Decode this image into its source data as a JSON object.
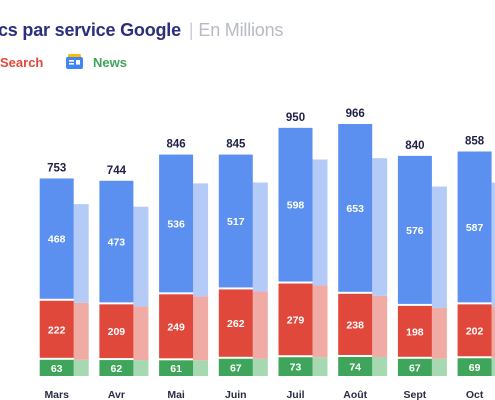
{
  "header": {
    "title": "cs par service Google",
    "subtitle": "En Millions"
  },
  "legend": {
    "items": [
      {
        "label": "Search",
        "color": "#e0483b",
        "icon": "search-icon"
      },
      {
        "label": "News",
        "color": "#3fa55a",
        "icon": "google-news-icon"
      }
    ]
  },
  "chart_data": {
    "type": "bar",
    "stacked": true,
    "categories": [
      "",
      "Mars",
      "Avr",
      "Mai",
      "Juin",
      "Juil",
      "Août",
      "Sept",
      "Oct"
    ],
    "series": [
      {
        "color": "#5b8ff0",
        "values": [
          null,
          468,
          473,
          536,
          517,
          598,
          653,
          576,
          587
        ]
      },
      {
        "name": "Search",
        "color": "#e0483b",
        "values": [
          null,
          222,
          209,
          249,
          262,
          279,
          238,
          198,
          202
        ]
      },
      {
        "name": "News",
        "color": "#3fa55a",
        "values": [
          null,
          63,
          62,
          61,
          67,
          73,
          74,
          67,
          69
        ]
      }
    ],
    "totals": [
      null,
      753,
      744,
      846,
      845,
      950,
      966,
      840,
      858
    ],
    "grid": false,
    "legend_position": "top-left"
  }
}
